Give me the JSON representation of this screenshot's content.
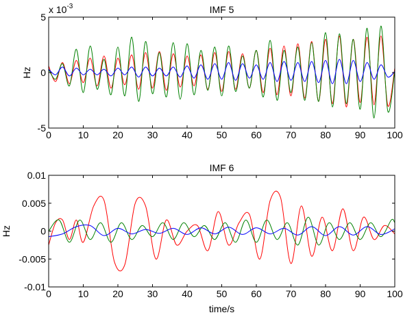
{
  "colors": {
    "red": "#ff0000",
    "green": "#008000",
    "blue": "#0000ff",
    "axis": "#000000"
  },
  "chart_data": [
    {
      "type": "line",
      "title": "IMF 5",
      "xlabel": "",
      "ylabel": "Hz",
      "xlim": [
        0,
        100
      ],
      "ylim": [
        -5,
        5
      ],
      "xticks": [
        "0",
        "10",
        "20",
        "30",
        "40",
        "50",
        "60",
        "70",
        "80",
        "90",
        "100"
      ],
      "yticks": [
        "-5",
        "0",
        "5"
      ],
      "scale_exponent": {
        "base": "x 10",
        "power": "-3"
      },
      "grid": false,
      "x_step": 2,
      "series": [
        {
          "color": "#ff0000",
          "values": [
            0.6,
            -0.8,
            0.9,
            -1.0,
            1.1,
            -0.9,
            1.3,
            -1.2,
            1.5,
            -1.4,
            1.3,
            -1.1,
            1.6,
            -1.5,
            1.8,
            -1.4,
            1.9,
            -1.6,
            1.7,
            -1.3,
            1.5,
            -1.2,
            1.6,
            -1.5,
            1.8,
            -1.7,
            1.9,
            -1.5,
            1.7,
            -1.4,
            2.0,
            -1.8,
            2.2,
            -2.0,
            2.4,
            -2.1,
            2.6,
            -2.3,
            2.8,
            -2.6,
            3.0,
            -2.8,
            3.3,
            -3.1,
            3.0,
            -2.7,
            3.2,
            -2.9,
            3.3,
            -3.0,
            0.4
          ]
        },
        {
          "color": "#008000",
          "values": [
            0.3,
            -0.6,
            0.8,
            -1.2,
            2.1,
            -1.8,
            2.4,
            -1.5,
            1.2,
            -2.0,
            2.3,
            -2.1,
            3.2,
            -2.6,
            2.8,
            -1.9,
            1.8,
            -2.2,
            2.7,
            -2.4,
            2.6,
            -2.0,
            2.0,
            -1.6,
            2.3,
            -2.1,
            2.4,
            -1.7,
            1.5,
            -1.4,
            2.0,
            -2.2,
            2.9,
            -2.5,
            2.0,
            -1.8,
            2.3,
            -2.5,
            2.7,
            -2.6,
            3.6,
            -3.1,
            3.5,
            -2.8,
            3.0,
            -3.3,
            4.0,
            -4.1,
            4.2,
            -3.5,
            0.2
          ]
        },
        {
          "color": "#0000ff",
          "values": [
            0.3,
            -0.2,
            0.5,
            -0.3,
            0.4,
            -0.2,
            0.3,
            -0.2,
            0.3,
            -0.3,
            0.4,
            -0.2,
            0.5,
            -0.4,
            0.5,
            -0.3,
            0.4,
            -0.3,
            0.5,
            -0.4,
            0.6,
            -0.5,
            0.7,
            -0.6,
            0.8,
            -0.6,
            0.9,
            -0.7,
            0.8,
            -0.5,
            0.7,
            -0.6,
            0.9,
            -0.8,
            1.0,
            -0.7,
            0.9,
            -0.8,
            1.0,
            -0.9,
            1.1,
            -1.0,
            1.2,
            -1.0,
            1.1,
            -0.8,
            0.9,
            -0.6,
            0.7,
            -0.4,
            0.1
          ]
        }
      ]
    },
    {
      "type": "line",
      "title": "IMF 6",
      "xlabel": "time/s",
      "ylabel": "Hz",
      "xlim": [
        0,
        100
      ],
      "ylim": [
        -0.01,
        0.01
      ],
      "xticks": [
        "0",
        "10",
        "20",
        "30",
        "40",
        "50",
        "60",
        "70",
        "80",
        "90",
        "100"
      ],
      "yticks": [
        "-0.01",
        "-0.005",
        "0",
        "0.005",
        "0.01"
      ],
      "grid": false,
      "series": [
        {
          "color": "#ff0000",
          "x": [
            0,
            2,
            4,
            6,
            8,
            10,
            13,
            16,
            19,
            22,
            25,
            28,
            31,
            34,
            37,
            40,
            43,
            46,
            49,
            52,
            55,
            58,
            61,
            64,
            67,
            70,
            73,
            76,
            79,
            82,
            85,
            88,
            91,
            94,
            97,
            100
          ],
          "values": [
            -0.0025,
            0.0015,
            0.002,
            -0.0015,
            0.002,
            -0.002,
            0.0045,
            0.0055,
            -0.0055,
            -0.006,
            0.005,
            0.0045,
            -0.005,
            0.002,
            -0.0025,
            0.0,
            0.001,
            -0.0035,
            0.0035,
            -0.0025,
            0.0015,
            0.003,
            -0.005,
            0.0055,
            0.006,
            -0.0058,
            0.0045,
            -0.0045,
            0.0025,
            -0.0035,
            0.004,
            -0.0035,
            0.0025,
            -0.0015,
            0.001,
            -0.0005
          ]
        },
        {
          "color": "#008000",
          "x": [
            0,
            3,
            6,
            9,
            12,
            15,
            18,
            21,
            24,
            27,
            30,
            33,
            36,
            39,
            42,
            45,
            48,
            51,
            54,
            57,
            60,
            63,
            66,
            69,
            72,
            75,
            78,
            81,
            84,
            87,
            90,
            93,
            96,
            99,
            100
          ],
          "values": [
            0.0,
            0.002,
            -0.002,
            0.002,
            -0.0015,
            0.0015,
            -0.002,
            0.0015,
            -0.0015,
            0.001,
            -0.001,
            0.0015,
            -0.0015,
            0.0015,
            -0.001,
            0.001,
            -0.0015,
            0.0015,
            -0.002,
            0.002,
            -0.002,
            0.002,
            -0.0015,
            0.0015,
            -0.0025,
            0.0025,
            -0.0025,
            0.0015,
            -0.0015,
            0.0015,
            -0.0015,
            0.0015,
            -0.001,
            0.002,
            0.0015
          ]
        },
        {
          "color": "#0000ff",
          "x": [
            0,
            4,
            8,
            12,
            16,
            20,
            24,
            28,
            32,
            36,
            40,
            44,
            48,
            52,
            56,
            60,
            64,
            68,
            72,
            76,
            80,
            84,
            88,
            92,
            96,
            100
          ],
          "values": [
            -0.001,
            -0.0005,
            0.0008,
            0.001,
            -0.0008,
            0.0005,
            -0.0005,
            0.0003,
            -0.0004,
            0.0005,
            -0.0006,
            0.0006,
            -0.0005,
            0.0007,
            -0.0006,
            0.0006,
            -0.0005,
            0.0005,
            -0.0007,
            0.0008,
            -0.0008,
            0.0008,
            -0.0007,
            0.0008,
            -0.0006,
            0.0004
          ]
        }
      ]
    }
  ]
}
